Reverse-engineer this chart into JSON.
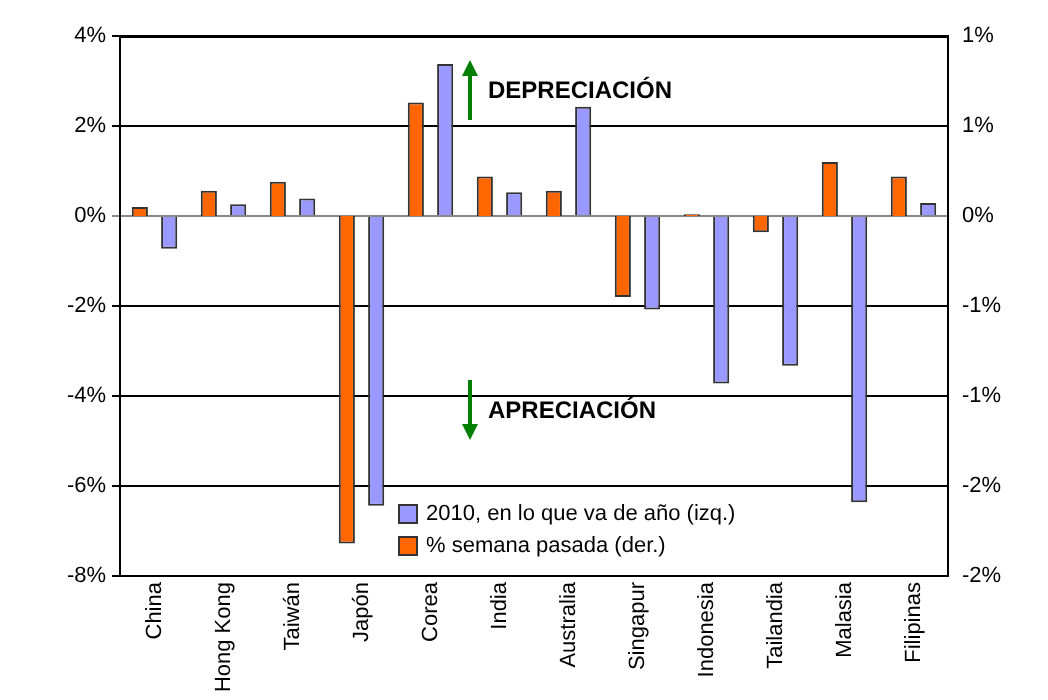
{
  "chart_data": {
    "type": "bar",
    "categories": [
      "China",
      "Hong Kong",
      "Taiwán",
      "Japón",
      "Corea",
      "India",
      "Australia",
      "Singapur",
      "Indonesia",
      "Tailandia",
      "Malasia",
      "Filipinas"
    ],
    "series": [
      {
        "name": "2010, en lo que va de año (izq.)",
        "color": "#9999ff",
        "values": [
          -0.73,
          0.26,
          0.39,
          -6.44,
          3.38,
          0.53,
          2.43,
          -2.08,
          -3.72,
          -3.33,
          -6.36,
          0.29
        ]
      },
      {
        "name": "% semana pasada (der.)",
        "color": "#ff6600",
        "axis": "y2",
        "values": [
          0.05,
          0.14,
          0.19,
          -1.82,
          0.63,
          0.22,
          0.14,
          -0.45,
          0.01,
          -0.09,
          0.3,
          0.22
        ]
      }
    ],
    "ylim": [
      -8,
      4
    ],
    "yticks": [
      {
        "value": 4,
        "label": "4%"
      },
      {
        "value": 2,
        "label": "2%"
      },
      {
        "value": 0,
        "label": "0%"
      },
      {
        "value": -2,
        "label": "-2%"
      },
      {
        "value": -4,
        "label": "-4%"
      },
      {
        "value": -6,
        "label": "-6%"
      },
      {
        "value": -8,
        "label": "-8%"
      }
    ],
    "y2lim": [
      -2,
      1
    ],
    "y2ticks": [
      {
        "value": 1,
        "label": "1%"
      },
      {
        "value": 0.5,
        "label": "1%"
      },
      {
        "value": 0,
        "label": "0%"
      },
      {
        "value": -0.5,
        "label": "-1%"
      },
      {
        "value": -1,
        "label": "-1%"
      },
      {
        "value": -1.5,
        "label": "-2%"
      },
      {
        "value": -2,
        "label": "-2%"
      }
    ],
    "grid": "y",
    "legend": "bottom right",
    "annotations": [
      "DEPRECIACIÓN",
      "APRECIACIÓN"
    ]
  }
}
